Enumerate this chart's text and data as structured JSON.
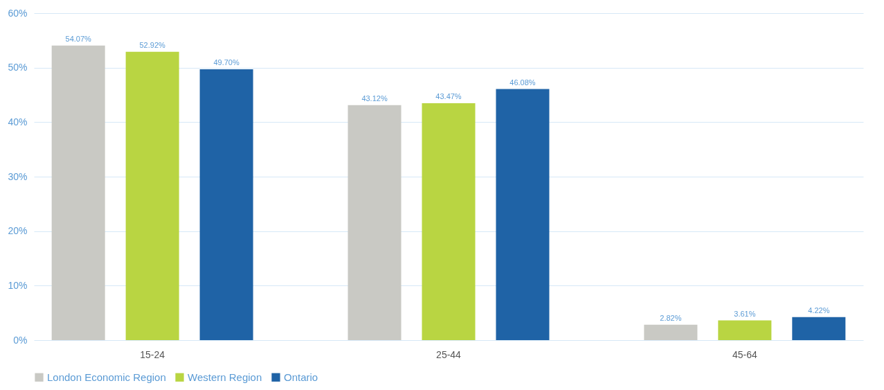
{
  "chart_data": {
    "type": "bar",
    "categories": [
      "15-24",
      "25-44",
      "45-64"
    ],
    "series": [
      {
        "name": "London Economic Region",
        "color": "#c9c9c4",
        "values": [
          54.07,
          43.12,
          2.82
        ],
        "value_labels": [
          "54.07%",
          "43.12%",
          "2.82%"
        ]
      },
      {
        "name": "Western Region",
        "color": "#b9d542",
        "values": [
          52.92,
          43.47,
          3.61
        ],
        "value_labels": [
          "52.92%",
          "43.47%",
          "3.61%"
        ]
      },
      {
        "name": "Ontario",
        "color": "#1f63a6",
        "values": [
          49.7,
          46.08,
          4.22
        ],
        "value_labels": [
          "49.70%",
          "46.08%",
          "4.22%"
        ]
      }
    ],
    "ylim": [
      0,
      60
    ],
    "yticks": [
      {
        "value": 0,
        "label": "0%"
      },
      {
        "value": 10,
        "label": "10%"
      },
      {
        "value": 20,
        "label": "20%"
      },
      {
        "value": 30,
        "label": "30%"
      },
      {
        "value": 40,
        "label": "40%"
      },
      {
        "value": 50,
        "label": "50%"
      },
      {
        "value": 60,
        "label": "60%"
      }
    ],
    "grid": "y",
    "legend": "bottom"
  }
}
